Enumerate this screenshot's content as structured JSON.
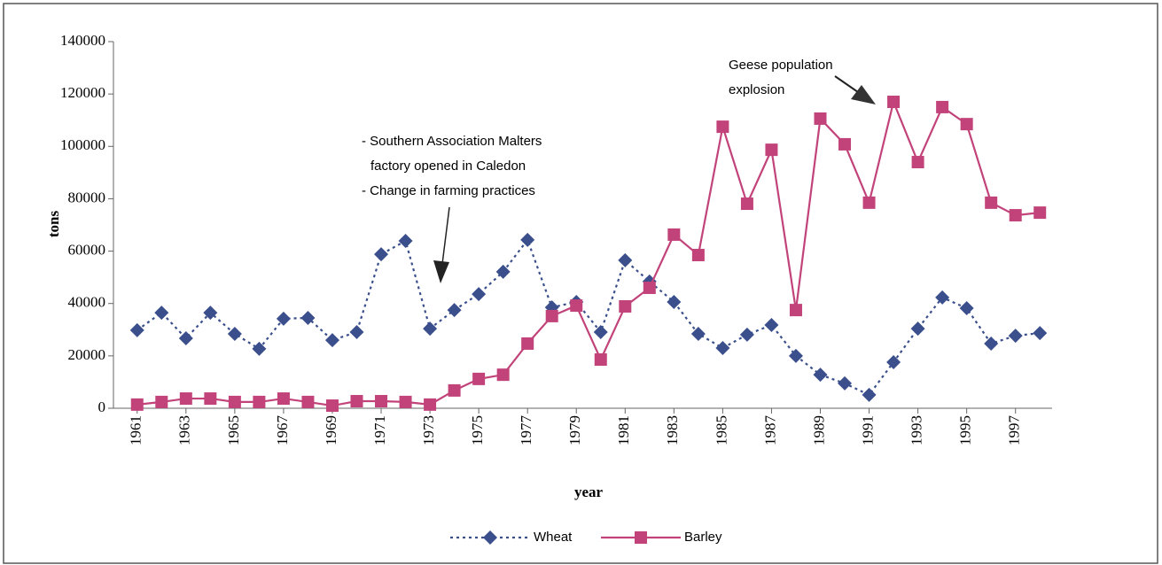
{
  "chart_data": {
    "type": "line",
    "x": [
      1961,
      1962,
      1963,
      1964,
      1965,
      1966,
      1967,
      1968,
      1969,
      1970,
      1971,
      1972,
      1973,
      1974,
      1975,
      1976,
      1977,
      1978,
      1979,
      1980,
      1981,
      1982,
      1983,
      1984,
      1985,
      1986,
      1987,
      1988,
      1989,
      1990,
      1991,
      1992,
      1993,
      1994,
      1995,
      1996,
      1997,
      1998
    ],
    "series": [
      {
        "name": "Wheat",
        "color": "#3a4f8c",
        "line_style": "dashed",
        "marker": "diamond",
        "values": [
          29800,
          36500,
          26700,
          36500,
          28400,
          22700,
          34200,
          34500,
          26000,
          29100,
          58800,
          63900,
          30400,
          37500,
          43600,
          52100,
          64300,
          38500,
          40600,
          29100,
          56500,
          48400,
          40600,
          28400,
          23000,
          28100,
          31800,
          20000,
          12800,
          9500,
          5100,
          17600,
          30400,
          42300,
          38200,
          24700,
          27700,
          28700
        ]
      },
      {
        "name": "Barley",
        "color": "#c2437a",
        "line_style": "solid",
        "marker": "square",
        "values": [
          1400,
          2400,
          3700,
          3700,
          2400,
          2400,
          3700,
          2400,
          1000,
          2700,
          2700,
          2400,
          1400,
          6800,
          11200,
          12800,
          24700,
          35200,
          39200,
          18600,
          38900,
          46000,
          66300,
          58500,
          107500,
          78100,
          98700,
          37500,
          110600,
          100800,
          78500,
          117000,
          94000,
          115000,
          108500,
          78500,
          73700,
          74700
        ]
      }
    ],
    "xlim": [
      1960.5,
      1998.5
    ],
    "xticks": [
      1961,
      1963,
      1965,
      1967,
      1969,
      1971,
      1973,
      1975,
      1977,
      1979,
      1981,
      1983,
      1985,
      1987,
      1989,
      1991,
      1993,
      1995,
      1997
    ],
    "ylim": [
      0,
      140000
    ],
    "yticks": [
      0,
      20000,
      40000,
      60000,
      80000,
      100000,
      120000,
      140000
    ],
    "x_label": "year",
    "y_label": "tons",
    "legend": "bottom",
    "annotations": [
      {
        "lines": [
          "- Southern Association Malters",
          "factory opened in Caledon",
          "- Change in farming practices"
        ]
      },
      {
        "lines": [
          "Geese population",
          "explosion"
        ]
      }
    ]
  }
}
